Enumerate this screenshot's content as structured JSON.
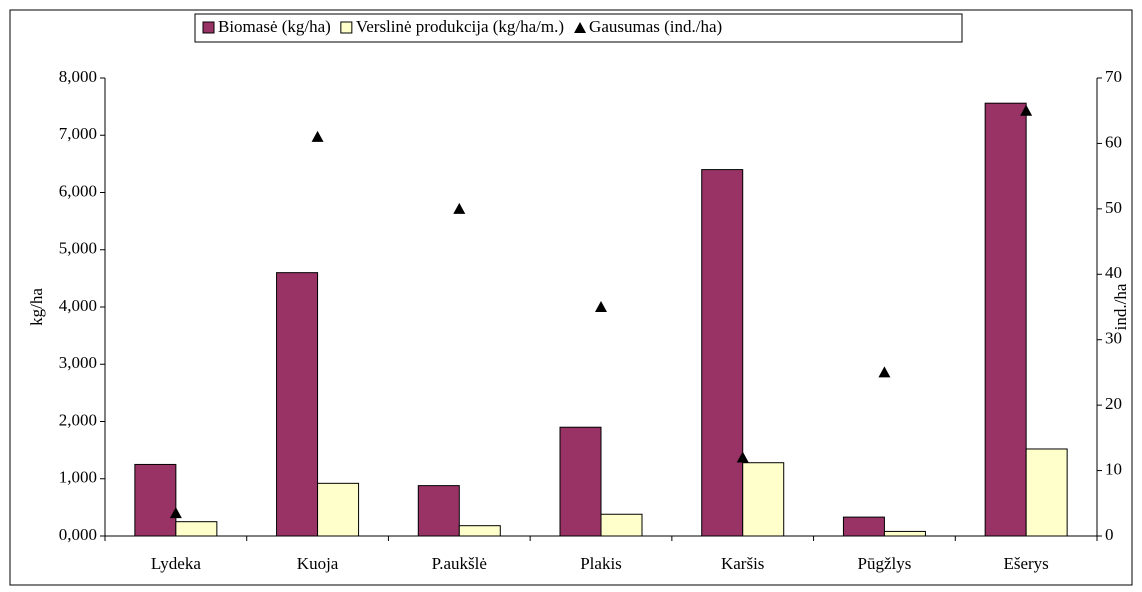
{
  "chart_data": {
    "type": "bar",
    "categories": [
      "Lydeka",
      "Kuoja",
      "P.aukšlė",
      "Plakis",
      "Karšis",
      "Pūgžlys",
      "Ešerys"
    ],
    "series": [
      {
        "name": "Biomasė (kg/ha)",
        "color": "#993366",
        "values": [
          1250,
          4600,
          880,
          1900,
          6400,
          330,
          7560
        ]
      },
      {
        "name": "Verslinė produkcija (kg/ha/m.)",
        "color": "#ffffcc",
        "values": [
          250,
          920,
          180,
          380,
          1280,
          80,
          1520
        ]
      },
      {
        "name": "Gausumas (ind./ha)",
        "color": "#000000",
        "type": "scatter",
        "axis": "y2",
        "values": [
          3.5,
          61,
          50,
          35,
          12,
          25,
          65
        ]
      }
    ],
    "ylabel": "kg/ha",
    "y2label": "ind./ha",
    "ylim": [
      0,
      8000
    ],
    "yticks": [
      {
        "value": 0,
        "label": "0,000"
      },
      {
        "value": 1000,
        "label": "1,000"
      },
      {
        "value": 2000,
        "label": "2,000"
      },
      {
        "value": 3000,
        "label": "3,000"
      },
      {
        "value": 4000,
        "label": "4,000"
      },
      {
        "value": 5000,
        "label": "5,000"
      },
      {
        "value": 6000,
        "label": "6,000"
      },
      {
        "value": 7000,
        "label": "7,000"
      },
      {
        "value": 8000,
        "label": "8,000"
      }
    ],
    "y2lim": [
      0,
      70
    ],
    "y2ticks": [
      0,
      10,
      20,
      30,
      40,
      50,
      60,
      70
    ],
    "legend": "top",
    "grid": false
  }
}
